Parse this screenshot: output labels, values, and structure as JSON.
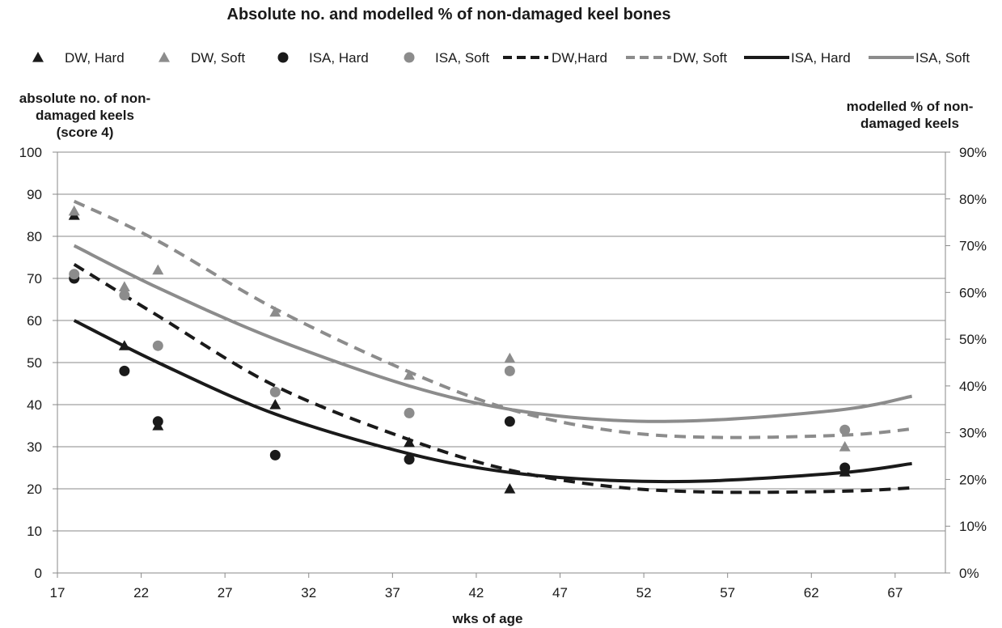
{
  "chart_data": {
    "type": "scatter",
    "title": "Absolute no. and modelled %  of non-damaged  keel bones",
    "xlabel": "wks of age",
    "ylabel_left": [
      "absolute no. of non-",
      "damaged keels",
      "(score 4)"
    ],
    "ylabel_right": [
      "modelled % of non-",
      "damaged keels"
    ],
    "xlim": [
      17,
      70
    ],
    "ylim_left": [
      0,
      100
    ],
    "ylim_right": [
      0,
      90
    ],
    "x_ticks": [
      "17",
      "22",
      "27",
      "32",
      "37",
      "42",
      "47",
      "52",
      "57",
      "62",
      "67"
    ],
    "y_ticks_left": [
      "0",
      "10",
      "20",
      "30",
      "40",
      "50",
      "60",
      "70",
      "80",
      "90",
      "100"
    ],
    "y_ticks_right": [
      "0%",
      "10%",
      "20%",
      "30%",
      "40%",
      "50%",
      "60%",
      "70%",
      "80%",
      "90%"
    ],
    "grid": true,
    "legend_position": "top",
    "points": [
      {
        "name": "DW, Hard",
        "marker": "triangle",
        "color": "#1a1a1a",
        "x": [
          18,
          21,
          23,
          30,
          38,
          44,
          64
        ],
        "y": [
          85,
          54,
          35,
          40,
          31,
          20,
          24
        ]
      },
      {
        "name": "DW, Soft",
        "marker": "triangle",
        "color": "#8c8c8c",
        "x": [
          18,
          21,
          23,
          30,
          38,
          44,
          64
        ],
        "y": [
          86,
          68,
          72,
          62,
          47,
          51,
          30
        ]
      },
      {
        "name": "ISA, Hard",
        "marker": "circle",
        "color": "#1a1a1a",
        "x": [
          18,
          21,
          23,
          30,
          38,
          44,
          64
        ],
        "y": [
          70,
          48,
          36,
          28,
          27,
          36,
          25
        ]
      },
      {
        "name": "ISA, Soft",
        "marker": "circle",
        "color": "#8c8c8c",
        "x": [
          18,
          21,
          23,
          30,
          38,
          44,
          64
        ],
        "y": [
          71,
          66,
          54,
          43,
          38,
          48,
          34
        ]
      }
    ],
    "curves": [
      {
        "name": "DW,Hard",
        "style": "dashed",
        "color": "#1a1a1a",
        "x": [
          18,
          23,
          30,
          38,
          44,
          50,
          56,
          64,
          68
        ],
        "y": [
          66,
          55,
          40,
          28.5,
          22,
          18.5,
          17.3,
          17.5,
          18.2
        ]
      },
      {
        "name": "DW, Soft",
        "style": "dashed",
        "color": "#8c8c8c",
        "x": [
          18,
          23,
          30,
          38,
          44,
          50,
          56,
          64,
          68
        ],
        "y": [
          79.5,
          71,
          56.5,
          43,
          35,
          30.5,
          29,
          29.5,
          30.8
        ]
      },
      {
        "name": "ISA, Hard",
        "style": "solid",
        "color": "#1a1a1a",
        "x": [
          18,
          23,
          30,
          38,
          44,
          50,
          56,
          64,
          68
        ],
        "y": [
          54,
          45,
          34,
          25.5,
          21.5,
          19.8,
          19.7,
          21.5,
          23.4
        ]
      },
      {
        "name": "ISA, Soft",
        "style": "solid",
        "color": "#8c8c8c",
        "x": [
          18,
          23,
          30,
          38,
          44,
          50,
          56,
          64,
          68
        ],
        "y": [
          70,
          61,
          50,
          40,
          35,
          32.7,
          32.7,
          35,
          37.8
        ]
      }
    ]
  }
}
